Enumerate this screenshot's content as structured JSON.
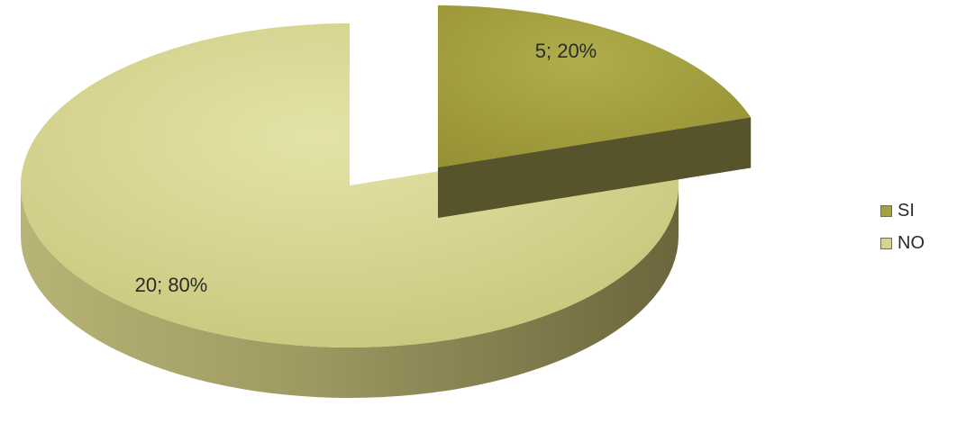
{
  "chart_data": {
    "type": "pie",
    "three_d": true,
    "exploded_slice": "SI",
    "legend_position": "right",
    "slices": [
      {
        "name": "SI",
        "value": 5,
        "percent": 20,
        "label": "5; 20%",
        "color": "#a3a03f",
        "side_color": "#5e5a2a"
      },
      {
        "name": "NO",
        "value": 20,
        "percent": 80,
        "label": "20; 80%",
        "color": "#d6d58f",
        "side_color": "#8b8656"
      }
    ]
  }
}
